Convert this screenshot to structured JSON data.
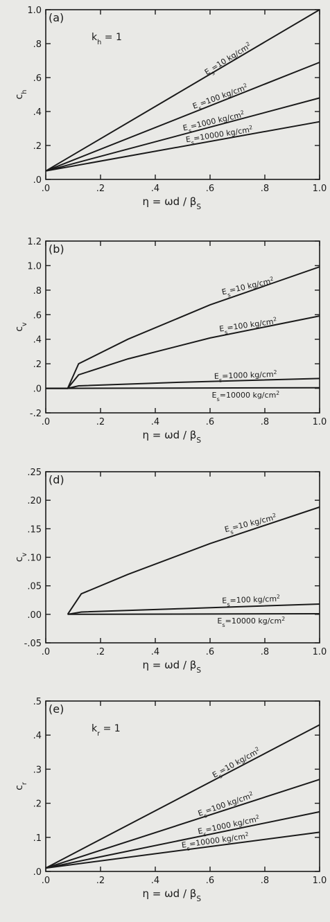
{
  "chart_data": [
    {
      "type": "line",
      "panel_label": "(a)",
      "annotation": "k",
      "annotation_sub": "h",
      "annotation_rest": " = 1",
      "ylabel": "c",
      "ylabel_sub": "h",
      "xlabel": "η = ωd / β",
      "xlabel_sub": "S",
      "xlim": [
        0,
        1.0
      ],
      "ylim": [
        0,
        1.0
      ],
      "xticks": [
        {
          "v": 0,
          "t": ".0"
        },
        {
          "v": 0.2,
          "t": ".2"
        },
        {
          "v": 0.4,
          "t": ".4"
        },
        {
          "v": 0.6,
          "t": ".6"
        },
        {
          "v": 0.8,
          "t": ".8"
        },
        {
          "v": 1.0,
          "t": "1.0"
        }
      ],
      "yticks": [
        {
          "v": 0,
          "t": ".0"
        },
        {
          "v": 0.2,
          "t": ".2"
        },
        {
          "v": 0.4,
          "t": ".4"
        },
        {
          "v": 0.6,
          "t": ".6"
        },
        {
          "v": 0.8,
          "t": ".8"
        },
        {
          "v": 1.0,
          "t": "1.0"
        }
      ],
      "series": [
        {
          "name": "E=10 kg/cm",
          "x": [
            0,
            1.0
          ],
          "y": [
            0.05,
            1.0
          ]
        },
        {
          "name": "E=100 kg/cm",
          "x": [
            0,
            1.0
          ],
          "y": [
            0.05,
            0.69
          ]
        },
        {
          "name": "E=1000 kg/cm",
          "x": [
            0,
            1.0
          ],
          "y": [
            0.05,
            0.48
          ]
        },
        {
          "name": "E=10000 kg/cm",
          "x": [
            0,
            1.0
          ],
          "y": [
            0.05,
            0.34
          ]
        }
      ]
    },
    {
      "type": "line",
      "panel_label": "(b)",
      "ylabel": "c",
      "ylabel_sub": "v",
      "xlabel": "η = ωd / β",
      "xlabel_sub": "S",
      "xlim": [
        0,
        1.0
      ],
      "ylim": [
        -0.2,
        1.2
      ],
      "xticks": [
        {
          "v": 0,
          "t": ".0"
        },
        {
          "v": 0.2,
          "t": ".2"
        },
        {
          "v": 0.4,
          "t": ".4"
        },
        {
          "v": 0.6,
          "t": ".6"
        },
        {
          "v": 0.8,
          "t": ".8"
        },
        {
          "v": 1.0,
          "t": "1.0"
        }
      ],
      "yticks": [
        {
          "v": -0.2,
          "t": "-.2"
        },
        {
          "v": 0,
          "t": ".0"
        },
        {
          "v": 0.2,
          "t": ".2"
        },
        {
          "v": 0.4,
          "t": ".4"
        },
        {
          "v": 0.6,
          "t": ".6"
        },
        {
          "v": 0.8,
          "t": ".8"
        },
        {
          "v": 1.0,
          "t": "1.0"
        },
        {
          "v": 1.2,
          "t": "1.2"
        }
      ],
      "series": [
        {
          "name": "E=10 kg/cm",
          "x": [
            0,
            0.08,
            0.12,
            0.3,
            0.6,
            1.0
          ],
          "y": [
            0,
            0,
            0.2,
            0.4,
            0.68,
            0.99
          ]
        },
        {
          "name": "E=100 kg/cm",
          "x": [
            0,
            0.08,
            0.12,
            0.3,
            0.6,
            1.0
          ],
          "y": [
            0,
            0,
            0.11,
            0.24,
            0.41,
            0.59
          ]
        },
        {
          "name": "E=1000 kg/cm",
          "x": [
            0,
            0.08,
            0.12,
            0.5,
            1.0
          ],
          "y": [
            0,
            0,
            0.02,
            0.05,
            0.08
          ]
        },
        {
          "name": "E=10000 kg/cm",
          "x": [
            0,
            0.08,
            1.0
          ],
          "y": [
            0,
            0,
            0.005
          ]
        }
      ]
    },
    {
      "type": "line",
      "panel_label": "(d)",
      "ylabel": "c",
      "ylabel_sub": "v",
      "xlabel": "η = ωd / β",
      "xlabel_sub": "S",
      "xlim": [
        0,
        1.0
      ],
      "ylim": [
        -0.05,
        0.25
      ],
      "xticks": [
        {
          "v": 0,
          "t": ".0"
        },
        {
          "v": 0.2,
          "t": ".2"
        },
        {
          "v": 0.4,
          "t": ".4"
        },
        {
          "v": 0.6,
          "t": ".6"
        },
        {
          "v": 0.8,
          "t": ".8"
        },
        {
          "v": 1.0,
          "t": "1.0"
        }
      ],
      "yticks": [
        {
          "v": -0.05,
          "t": "-.05"
        },
        {
          "v": 0,
          "t": ".00"
        },
        {
          "v": 0.05,
          "t": ".05"
        },
        {
          "v": 0.1,
          "t": ".10"
        },
        {
          "v": 0.15,
          "t": ".15"
        },
        {
          "v": 0.2,
          "t": ".20"
        },
        {
          "v": 0.25,
          "t": ".25"
        }
      ],
      "series": [
        {
          "name": "E=10 kg/cm",
          "x": [
            0.08,
            0.13,
            0.3,
            0.6,
            1.0
          ],
          "y": [
            0.0,
            0.036,
            0.07,
            0.124,
            0.188
          ]
        },
        {
          "name": "E=100 kg/cm",
          "x": [
            0.08,
            0.13,
            0.5,
            1.0
          ],
          "y": [
            0.0,
            0.004,
            0.01,
            0.018
          ]
        },
        {
          "name": "E=10000 kg/cm",
          "x": [
            0.08,
            1.0
          ],
          "y": [
            0.0,
            0.001
          ]
        }
      ]
    },
    {
      "type": "line",
      "panel_label": "(e)",
      "annotation": "k",
      "annotation_sub": "r",
      "annotation_rest": " = 1",
      "ylabel": "c",
      "ylabel_sub": "r",
      "xlabel": "η = ωd / β",
      "xlabel_sub": "S",
      "xlim": [
        0,
        1.0
      ],
      "ylim": [
        0,
        0.5
      ],
      "xticks": [
        {
          "v": 0,
          "t": ".0"
        },
        {
          "v": 0.2,
          "t": ".2"
        },
        {
          "v": 0.4,
          "t": ".4"
        },
        {
          "v": 0.6,
          "t": ".6"
        },
        {
          "v": 0.8,
          "t": ".8"
        },
        {
          "v": 1.0,
          "t": "1.0"
        }
      ],
      "yticks": [
        {
          "v": 0,
          "t": ".0"
        },
        {
          "v": 0.1,
          "t": ".1"
        },
        {
          "v": 0.2,
          "t": ".2"
        },
        {
          "v": 0.3,
          "t": ".3"
        },
        {
          "v": 0.4,
          "t": ".4"
        },
        {
          "v": 0.5,
          "t": ".5"
        }
      ],
      "series": [
        {
          "name": "E=10 kg/cm",
          "x": [
            0,
            1.0
          ],
          "y": [
            0.01,
            0.43
          ]
        },
        {
          "name": "E=100 kg/cm",
          "x": [
            0,
            1.0
          ],
          "y": [
            0.01,
            0.27
          ]
        },
        {
          "name": "E=1000 kg/cm",
          "x": [
            0,
            1.0
          ],
          "y": [
            0.01,
            0.175
          ]
        },
        {
          "name": "E=10000 kg/cm",
          "x": [
            0,
            1.0
          ],
          "y": [
            0.01,
            0.115
          ]
        }
      ]
    }
  ]
}
